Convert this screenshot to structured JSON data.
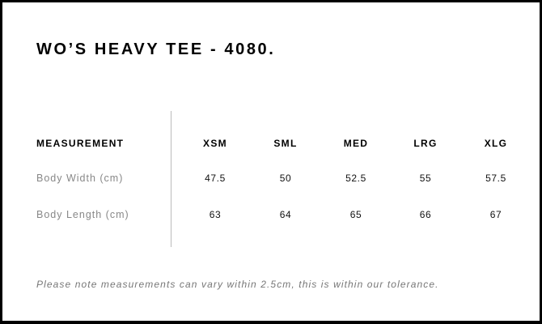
{
  "title": "WO’S HEAVY TEE - 4080.",
  "table": {
    "header": {
      "label": "MEASUREMENT",
      "sizes": [
        "XSM",
        "SML",
        "MED",
        "LRG",
        "XLG"
      ]
    },
    "rows": [
      {
        "label": "Body Width (cm)",
        "values": [
          "47.5",
          "50",
          "52.5",
          "55",
          "57.5"
        ]
      },
      {
        "label": "Body Length (cm)",
        "values": [
          "63",
          "64",
          "65",
          "66",
          "67"
        ]
      }
    ]
  },
  "note": "Please note measurements can vary within 2.5cm, this is within our tolerance."
}
